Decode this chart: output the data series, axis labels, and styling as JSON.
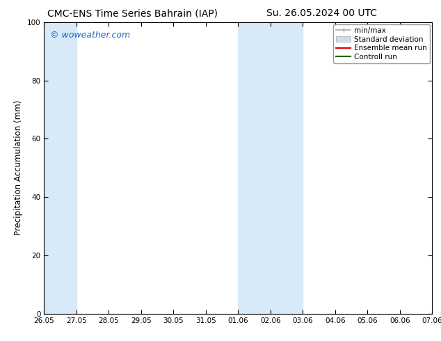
{
  "title_left": "CMC-ENS Time Series Bahrain (IAP)",
  "title_right": "Su. 26.05.2024 00 UTC",
  "ylabel": "Precipitation Accumulation (mm)",
  "watermark": "© woweather.com",
  "watermark_color": "#1a66cc",
  "ylim": [
    0,
    100
  ],
  "yticks": [
    0,
    20,
    40,
    60,
    80,
    100
  ],
  "xtick_labels": [
    "26.05",
    "27.05",
    "28.05",
    "29.05",
    "30.05",
    "31.05",
    "01.06",
    "02.06",
    "03.06",
    "04.06",
    "05.06",
    "06.06",
    "07.06"
  ],
  "xtick_positions": [
    0,
    1,
    2,
    3,
    4,
    5,
    6,
    7,
    8,
    9,
    10,
    11,
    12
  ],
  "shaded_bands": [
    {
      "x_start": 0,
      "x_end": 1,
      "color": "#d8eaf8"
    },
    {
      "x_start": 6,
      "x_end": 7,
      "color": "#d8eaf8"
    },
    {
      "x_start": 7,
      "x_end": 8,
      "color": "#d8eaf8"
    }
  ],
  "legend_items": [
    {
      "label": "min/max",
      "color": "#aaaaaa",
      "lw": 1.2,
      "style": "line_with_caps"
    },
    {
      "label": "Standard deviation",
      "color": "#ccddee",
      "lw": 6,
      "style": "band"
    },
    {
      "label": "Ensemble mean run",
      "color": "#dd0000",
      "lw": 1.5,
      "style": "line"
    },
    {
      "label": "Controll run",
      "color": "#006600",
      "lw": 1.5,
      "style": "line"
    }
  ],
  "bg_color": "#ffffff",
  "plot_bg_color": "#ffffff",
  "border_color": "#000000",
  "title_fontsize": 10,
  "label_fontsize": 8.5,
  "tick_fontsize": 7.5,
  "legend_fontsize": 7.5,
  "watermark_fontsize": 9
}
